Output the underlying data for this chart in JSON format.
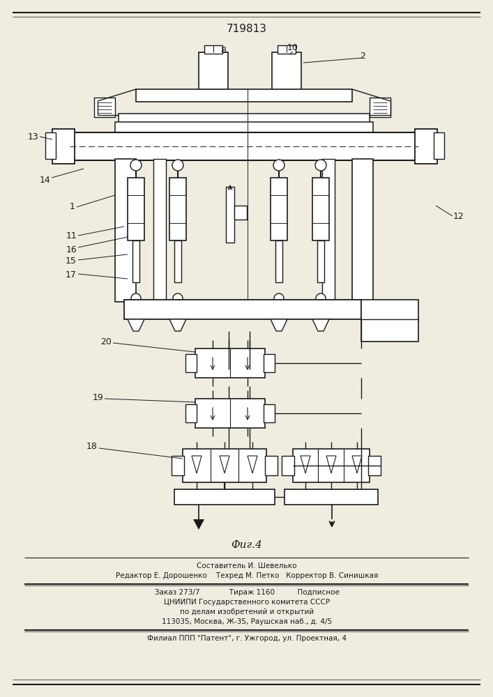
{
  "patent_number": "719813",
  "fig_label": "Фиг.4",
  "bg_color": "#f0ece0",
  "line_color": "#1a1a1a",
  "footer_lines": [
    "Составитель И. Шевелько",
    "Редактор Е. Дорошенко    Техред М. Петко   Корректор В. Синишкая",
    "Заказ 273/7             Тираж 1160          Подписное",
    "ЦНИИПИ Государственного комитета СССР",
    "по делам изобретений и открытий",
    "113035, Москва, Ж-35, Раушская наб., д. 4/5",
    "Филиал ППП \"Патент\", г. Ужгород, ул. Проектная, 4"
  ]
}
